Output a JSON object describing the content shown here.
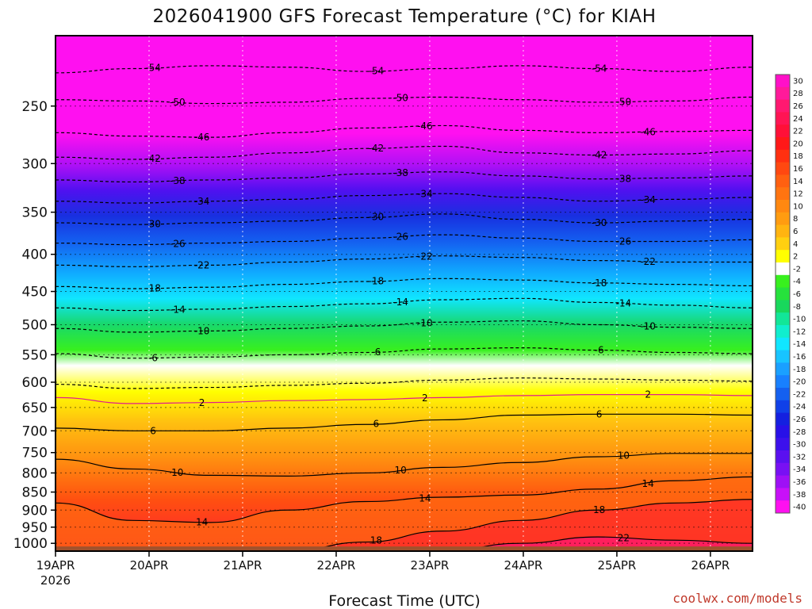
{
  "chart_data": {
    "type": "heatmap",
    "title": "2026041900 GFS Forecast Temperature (°C) for KIAH",
    "xlabel": "Forecast Time (UTC)",
    "ylabel": "",
    "credit": "coolwx.com/models",
    "x_ticks": [
      {
        "label": "19APR",
        "day": 0
      },
      {
        "label": "20APR",
        "day": 1
      },
      {
        "label": "21APR",
        "day": 2
      },
      {
        "label": "22APR",
        "day": 3
      },
      {
        "label": "23APR",
        "day": 4
      },
      {
        "label": "24APR",
        "day": 5
      },
      {
        "label": "25APR",
        "day": 6
      },
      {
        "label": "26APR",
        "day": 7
      }
    ],
    "x_year": "2026",
    "xlim_days": [
      0,
      7.45
    ],
    "y_ticks": [
      250,
      300,
      350,
      400,
      450,
      500,
      550,
      600,
      650,
      700,
      750,
      800,
      850,
      900,
      950,
      1000
    ],
    "ylim_hPa": [
      200,
      1025
    ],
    "ground_hPa": 1010,
    "colorbar": {
      "labels": [
        "30",
        "28",
        "26",
        "24",
        "22",
        "20",
        "18",
        "16",
        "14",
        "12",
        "10",
        "8",
        "6",
        "4",
        "2",
        "-2",
        "-4",
        "-6",
        "-8",
        "-10",
        "-12",
        "-14",
        "-16",
        "-18",
        "-20",
        "-22",
        "-24",
        "-26",
        "-28",
        "-30",
        "-32",
        "-34",
        "-36",
        "-38",
        "-40"
      ],
      "colors": [
        "#ff10c8",
        "#ff1a9a",
        "#ff1870",
        "#ff1454",
        "#ff1038",
        "#ff1818",
        "#ff3010",
        "#ff4810",
        "#ff6010",
        "#ff7410",
        "#ff8810",
        "#ff9c10",
        "#ffb410",
        "#ffd010",
        "#ffff00",
        "#ffffff",
        "#38f01e",
        "#26e23c",
        "#18d85c",
        "#12e698",
        "#10eece",
        "#10e6ff",
        "#18c4ff",
        "#1aa0ff",
        "#1880ff",
        "#1460f0",
        "#1040e8",
        "#1420e0",
        "#2810e8",
        "#3c10ec",
        "#5a10f0",
        "#7810f4",
        "#9e10f6",
        "#c810f8",
        "#ff10f0"
      ]
    },
    "isotherms": [
      {
        "value": -54,
        "label": "-54",
        "levels": [
          225,
          222,
          220,
          221,
          224,
          222,
          220,
          222,
          224,
          221
        ]
      },
      {
        "value": -50,
        "label": "-50",
        "levels": [
          245,
          246,
          248,
          247,
          244,
          243,
          245,
          247,
          246,
          243
        ]
      },
      {
        "value": -46,
        "label": "-46",
        "levels": [
          272,
          275,
          276,
          272,
          268,
          266,
          270,
          272,
          271,
          270
        ]
      },
      {
        "value": -42,
        "label": "-42",
        "levels": [
          294,
          296,
          294,
          290,
          286,
          284,
          290,
          292,
          291,
          288
        ]
      },
      {
        "value": -38,
        "label": "-38",
        "levels": [
          316,
          318,
          316,
          314,
          310,
          308,
          312,
          315,
          314,
          312
        ]
      },
      {
        "value": -34,
        "label": "-34",
        "levels": [
          338,
          340,
          338,
          336,
          332,
          330,
          334,
          338,
          336,
          334
        ]
      },
      {
        "value": -30,
        "label": "-30",
        "levels": [
          362,
          364,
          362,
          360,
          356,
          352,
          358,
          362,
          360,
          358
        ]
      },
      {
        "value": -26,
        "label": "-26",
        "levels": [
          386,
          388,
          386,
          384,
          380,
          376,
          380,
          384,
          384,
          382
        ]
      },
      {
        "value": -22,
        "label": "-22",
        "levels": [
          414,
          416,
          414,
          410,
          406,
          402,
          404,
          408,
          410,
          410
        ]
      },
      {
        "value": -18,
        "label": "-18",
        "levels": [
          443,
          446,
          444,
          440,
          436,
          432,
          434,
          438,
          440,
          442
        ]
      },
      {
        "value": -14,
        "label": "-14",
        "levels": [
          474,
          478,
          476,
          472,
          468,
          462,
          460,
          466,
          470,
          474
        ]
      },
      {
        "value": -10,
        "label": "-10",
        "levels": [
          506,
          512,
          510,
          506,
          502,
          496,
          494,
          500,
          504,
          506
        ]
      },
      {
        "value": -6,
        "label": "-6",
        "levels": [
          548,
          556,
          554,
          550,
          546,
          540,
          538,
          542,
          546,
          548
        ]
      },
      {
        "value": -2,
        "label": "",
        "levels": [
          604,
          612,
          610,
          606,
          602,
          596,
          592,
          594,
          596,
          598
        ]
      },
      {
        "value": 2,
        "label": "2",
        "levels": [
          630,
          642,
          640,
          636,
          634,
          630,
          626,
          624,
          624,
          626
        ]
      },
      {
        "value": 6,
        "label": "6",
        "levels": [
          694,
          700,
          700,
          694,
          686,
          676,
          666,
          664,
          664,
          666
        ]
      },
      {
        "value": 10,
        "label": "10",
        "levels": [
          766,
          790,
          806,
          808,
          800,
          786,
          774,
          760,
          752,
          752
        ]
      },
      {
        "value": 14,
        "label": "14",
        "levels": [
          880,
          930,
          936,
          900,
          876,
          864,
          858,
          842,
          820,
          810
        ]
      },
      {
        "value": 18,
        "label": "18",
        "levels": [
          1025,
          1025,
          1025,
          1025,
          996,
          962,
          930,
          900,
          880,
          870
        ]
      },
      {
        "value": 22,
        "label": "22",
        "levels": [
          1025,
          1025,
          1025,
          1025,
          1025,
          1025,
          1000,
          980,
          990,
          1000
        ]
      }
    ]
  }
}
